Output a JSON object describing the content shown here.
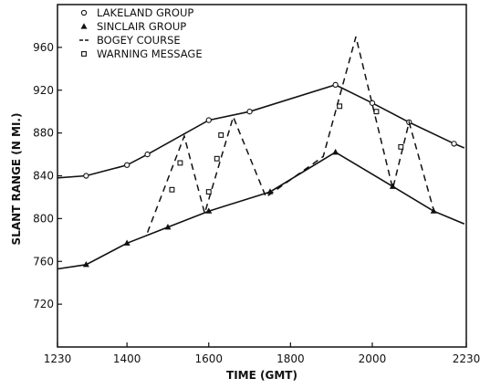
{
  "chart_data": {
    "type": "line",
    "title": "",
    "xlabel": "TIME (GMT)",
    "ylabel": "SLANT RANGE (N MI.)",
    "xlim": [
      1230,
      2230
    ],
    "ylim": [
      680,
      1000
    ],
    "x_ticks": [
      1230,
      1400,
      1600,
      1800,
      2000,
      2230
    ],
    "y_ticks": [
      720,
      760,
      800,
      840,
      880,
      920,
      960
    ],
    "grid": false,
    "legend_position": "top-left",
    "series": [
      {
        "name": "LAKELAND GROUP",
        "style": "solid",
        "marker": "open-circle",
        "x": [
          1300,
          1400,
          1450,
          1600,
          1700,
          1910,
          2000,
          2090,
          2200
        ],
        "y": [
          840,
          850,
          860,
          892,
          900,
          925,
          908,
          890,
          870
        ]
      },
      {
        "name": "SINCLAIR GROUP",
        "style": "solid",
        "marker": "filled-triangle",
        "x": [
          1300,
          1400,
          1500,
          1600,
          1750,
          1910,
          2050,
          2150
        ],
        "y": [
          757,
          777,
          792,
          807,
          825,
          862,
          830,
          807
        ]
      },
      {
        "name": "BOGEY COURSE",
        "style": "dashed",
        "marker": "none",
        "x": [
          1450,
          1540,
          1590,
          1660,
          1740,
          1880,
          1960,
          2050,
          2090,
          2150
        ],
        "y": [
          787,
          877,
          805,
          895,
          820,
          858,
          970,
          828,
          890,
          808
        ]
      },
      {
        "name": "WARNING MESSAGE",
        "style": "none",
        "marker": "open-square",
        "x": [
          1510,
          1530,
          1600,
          1620,
          1630,
          1920,
          2010,
          2070
        ],
        "y": [
          827,
          852,
          825,
          856,
          878,
          905,
          900,
          867
        ]
      }
    ]
  }
}
